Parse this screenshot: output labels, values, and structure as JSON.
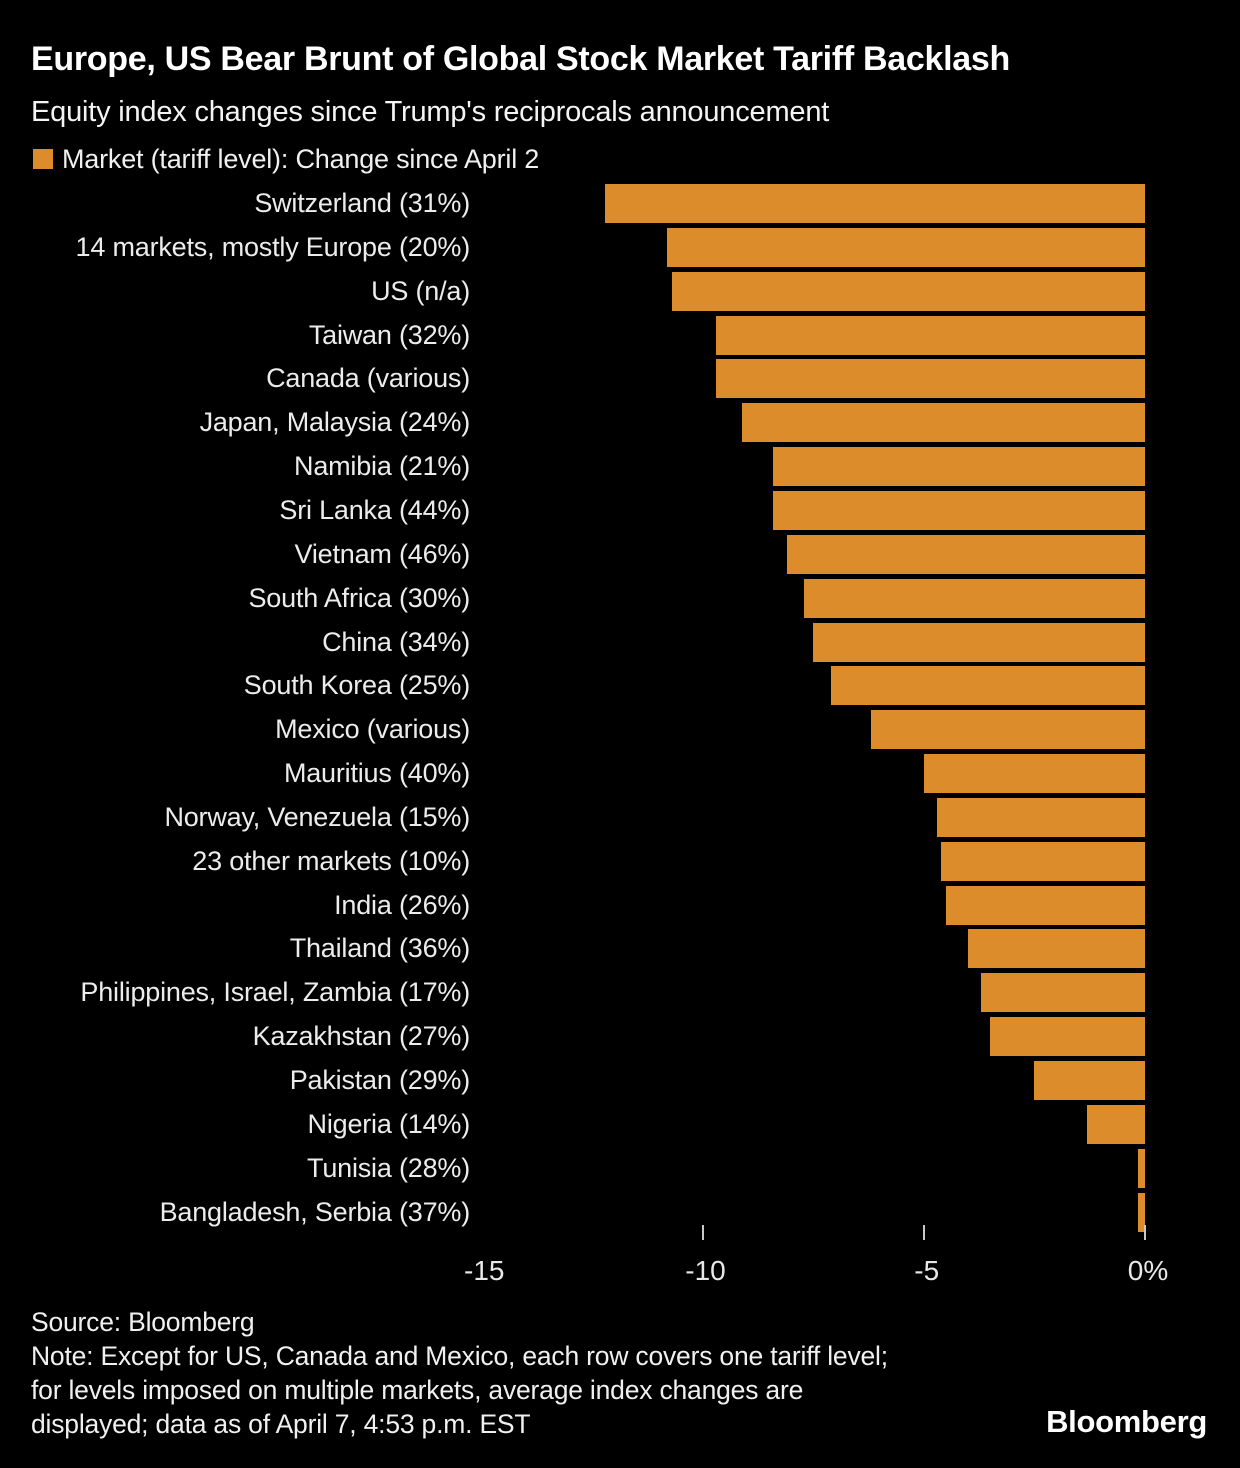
{
  "title": "Europe, US Bear Brunt of Global Stock Market Tariff Backlash",
  "subtitle": "Equity index changes since Trump's reciprocals announcement",
  "legend": {
    "label": "Market (tariff level): Change since April 2"
  },
  "colors": {
    "background": "#000000",
    "bar": "#DD8C2B",
    "title_text": "#FFFFFF",
    "label_text": "#ECECEC",
    "tick_mark": "#C8C8C8"
  },
  "chart_data": {
    "type": "bar",
    "orientation": "horizontal-negative",
    "title": "Europe, US Bear Brunt of Global Stock Market Tariff Backlash",
    "subtitle": "Equity index changes since Trump's reciprocals announcement",
    "legend_entry": "Market (tariff level): Change since April 2",
    "xlabel": "",
    "ylabel": "Market (tariff level)",
    "xlim": [
      -16.5,
      0.35
    ],
    "grid": false,
    "categories": [
      "Switzerland (31%)",
      "14 markets, mostly Europe (20%)",
      "US (n/a)",
      "Taiwan (32%)",
      "Canada (various)",
      "Japan, Malaysia (24%)",
      "Namibia (21%)",
      "Sri Lanka (44%)",
      "Vietnam (46%)",
      "South Africa (30%)",
      "China (34%)",
      "South Korea (25%)",
      "Mexico (various)",
      "Mauritius (40%)",
      "Norway, Venezuela (15%)",
      "23 other markets (10%)",
      "India (26%)",
      "Thailand (36%)",
      "Philippines, Israel, Zambia (17%)",
      "Kazakhstan (27%)",
      "Pakistan (29%)",
      "Nigeria (14%)",
      "Tunisia (28%)",
      "Bangladesh, Serbia (37%)"
    ],
    "values": [
      -12.2,
      -10.8,
      -10.7,
      -9.7,
      -9.7,
      -9.1,
      -8.4,
      -8.4,
      -8.1,
      -7.7,
      -7.5,
      -7.1,
      -6.2,
      -5.0,
      -4.7,
      -4.6,
      -4.5,
      -4.0,
      -3.7,
      -3.5,
      -2.5,
      -1.3,
      -0.15,
      -0.15
    ],
    "x_axis": {
      "tick_values": [
        -15,
        -10,
        -5,
        0
      ],
      "tick_labels": [
        "-15",
        "-10",
        "-5",
        "0%"
      ],
      "ticks_with_marks": [
        -10,
        -5,
        0
      ]
    }
  },
  "footer": {
    "source": "Source: Bloomberg",
    "note_lines": [
      "Note: Except for US, Canada and Mexico, each row covers one tariff level;",
      "for levels imposed on multiple markets, average index changes are",
      "displayed; data as of April 7, 4:53 p.m. EST"
    ],
    "logo": "Bloomberg"
  }
}
